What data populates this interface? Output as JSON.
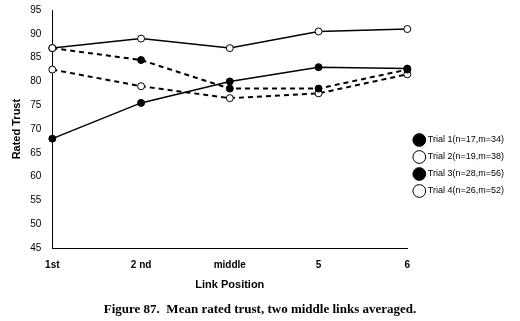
{
  "chart_data": {
    "type": "line",
    "title": "Figure 87.  Mean rated trust, two middle links averaged.",
    "x_label": "Link Position",
    "y_label": "Rated Trust",
    "categories": [
      "1st",
      "2 nd",
      "middle",
      "5",
      "6"
    ],
    "series": [
      {
        "name": "Trial 1(n=17,m=34)",
        "color": "#000000",
        "marker": "filled_circle",
        "line_style": "solid",
        "values": [
          68,
          75.5,
          80,
          83,
          82.7
        ]
      },
      {
        "name": "Trial 2(n=19,m=38)",
        "color": "#000000",
        "marker": "open_circle",
        "line_style": "solid",
        "values": [
          87,
          89,
          87,
          90.5,
          91
        ]
      },
      {
        "name": "Trial 3(n=28,m=56)",
        "color": "#000000",
        "marker": "filled_circle",
        "line_style": "dashed",
        "values": [
          87,
          84.5,
          78.5,
          78.5,
          82.5
        ]
      },
      {
        "name": "Trial 4(n=26,m=52)",
        "color": "#000000",
        "marker": "open_circle",
        "line_style": "dashed",
        "values": [
          82.5,
          79,
          76.5,
          77.5,
          81.5
        ]
      }
    ],
    "ylim": [
      45,
      95
    ],
    "yticks": [
      45,
      50,
      55,
      60,
      65,
      70,
      75,
      80,
      85,
      90,
      95
    ],
    "grid": false,
    "legend": "right"
  }
}
